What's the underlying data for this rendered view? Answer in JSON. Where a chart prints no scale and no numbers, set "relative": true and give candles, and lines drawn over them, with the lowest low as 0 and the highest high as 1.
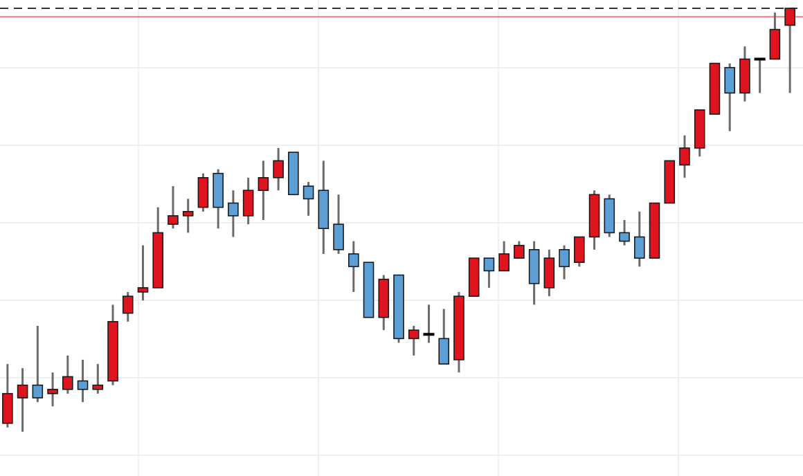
{
  "chart_data": {
    "type": "candlestick",
    "relative": true,
    "grid": true,
    "categories": [
      null,
      null,
      null,
      null,
      null,
      null,
      null,
      null,
      null,
      null,
      null,
      null,
      null,
      null,
      null,
      null,
      null,
      null,
      null,
      null,
      null,
      null,
      null,
      null,
      null,
      null,
      null,
      null,
      null,
      null,
      null,
      null,
      null,
      null,
      null,
      null,
      null,
      null,
      null,
      null,
      null,
      null,
      null,
      null,
      null,
      null,
      null,
      null,
      null,
      null,
      null,
      null,
      null
    ],
    "ohlc": [
      [
        0.02,
        0.16,
        0.01,
        0.09
      ],
      [
        0.08,
        0.15,
        0,
        0.11
      ],
      [
        0.11,
        0.25,
        0.07,
        0.08
      ],
      [
        0.09,
        0.14,
        0.06,
        0.1
      ],
      [
        0.1,
        0.18,
        0.09,
        0.13
      ],
      [
        0.12,
        0.17,
        0.07,
        0.1
      ],
      [
        0.1,
        0.16,
        0.09,
        0.11
      ],
      [
        0.12,
        0.3,
        0.11,
        0.26
      ],
      [
        0.28,
        0.33,
        0.26,
        0.32
      ],
      [
        0.33,
        0.44,
        0.31,
        0.34
      ],
      [
        0.34,
        0.53,
        0.34,
        0.47
      ],
      [
        0.49,
        0.58,
        0.48,
        0.51
      ],
      [
        0.51,
        0.55,
        0.47,
        0.52
      ],
      [
        0.53,
        0.61,
        0.52,
        0.6
      ],
      [
        0.61,
        0.62,
        0.48,
        0.53
      ],
      [
        0.54,
        0.57,
        0.46,
        0.51
      ],
      [
        0.51,
        0.6,
        0.49,
        0.57
      ],
      [
        0.57,
        0.64,
        0.5,
        0.6
      ],
      [
        0.6,
        0.67,
        0.57,
        0.64
      ],
      [
        0.66,
        0.66,
        0.56,
        0.56
      ],
      [
        0.58,
        0.59,
        0.51,
        0.55
      ],
      [
        0.57,
        0.64,
        0.42,
        0.48
      ],
      [
        0.49,
        0.56,
        0.42,
        0.43
      ],
      [
        0.42,
        0.45,
        0.33,
        0.39
      ],
      [
        0.4,
        0.4,
        0.27,
        0.27
      ],
      [
        0.27,
        0.37,
        0.24,
        0.36
      ],
      [
        0.37,
        0.37,
        0.21,
        0.22
      ],
      [
        0.22,
        0.25,
        0.18,
        0.24
      ],
      [
        0.23,
        0.3,
        0.21,
        0.23
      ],
      [
        0.22,
        0.29,
        0.16,
        0.16
      ],
      [
        0.17,
        0.33,
        0.14,
        0.32
      ],
      [
        0.32,
        0.41,
        0.32,
        0.41
      ],
      [
        0.41,
        0.41,
        0.34,
        0.38
      ],
      [
        0.38,
        0.45,
        0.38,
        0.42
      ],
      [
        0.41,
        0.45,
        0.41,
        0.44
      ],
      [
        0.43,
        0.45,
        0.3,
        0.35
      ],
      [
        0.34,
        0.43,
        0.32,
        0.41
      ],
      [
        0.43,
        0.44,
        0.36,
        0.39
      ],
      [
        0.4,
        0.46,
        0.39,
        0.46
      ],
      [
        0.46,
        0.57,
        0.43,
        0.56
      ],
      [
        0.55,
        0.56,
        0.46,
        0.47
      ],
      [
        0.47,
        0.5,
        0.44,
        0.45
      ],
      [
        0.46,
        0.52,
        0.39,
        0.41
      ],
      [
        0.41,
        0.54,
        0.41,
        0.54
      ],
      [
        0.54,
        0.64,
        0.54,
        0.64
      ],
      [
        0.63,
        0.7,
        0.6,
        0.67
      ],
      [
        0.67,
        0.76,
        0.65,
        0.76
      ],
      [
        0.75,
        0.87,
        0.75,
        0.87
      ],
      [
        0.86,
        0.87,
        0.71,
        0.8
      ],
      [
        0.8,
        0.91,
        0.78,
        0.88
      ],
      [
        0.88,
        0.88,
        0.8,
        0.88
      ],
      [
        0.88,
        0.99,
        0.88,
        0.95
      ],
      [
        0.96,
        1,
        0.8,
        1
      ]
    ],
    "colors": [
      "#e0141e",
      "#e0141e",
      "#5b9fd6",
      "#e0141e",
      "#e0141e",
      "#5b9fd6",
      "#e0141e",
      "#e0141e",
      "#e0141e",
      "#e0141e",
      "#e0141e",
      "#e0141e",
      "#e0141e",
      "#e0141e",
      "#5b9fd6",
      "#5b9fd6",
      "#e0141e",
      "#e0141e",
      "#e0141e",
      "#5b9fd6",
      "#5b9fd6",
      "#5b9fd6",
      "#5b9fd6",
      "#5b9fd6",
      "#5b9fd6",
      "#e0141e",
      "#5b9fd6",
      "#e0141e",
      "#000000",
      "#5b9fd6",
      "#e0141e",
      "#e0141e",
      "#5b9fd6",
      "#e0141e",
      "#e0141e",
      "#5b9fd6",
      "#e0141e",
      "#5b9fd6",
      "#e0141e",
      "#e0141e",
      "#5b9fd6",
      "#5b9fd6",
      "#5b9fd6",
      "#e0141e",
      "#e0141e",
      "#e0141e",
      "#e0141e",
      "#e0141e",
      "#5b9fd6",
      "#e0141e",
      "#000000",
      "#e0141e",
      "#e0141e"
    ],
    "ref_lines": [
      {
        "axis": "y",
        "value": 1,
        "color": "#333333",
        "line_style": "dashed"
      },
      {
        "axis": "y",
        "value": 0.98,
        "color": "#f08080",
        "line_style": "solid"
      }
    ]
  }
}
